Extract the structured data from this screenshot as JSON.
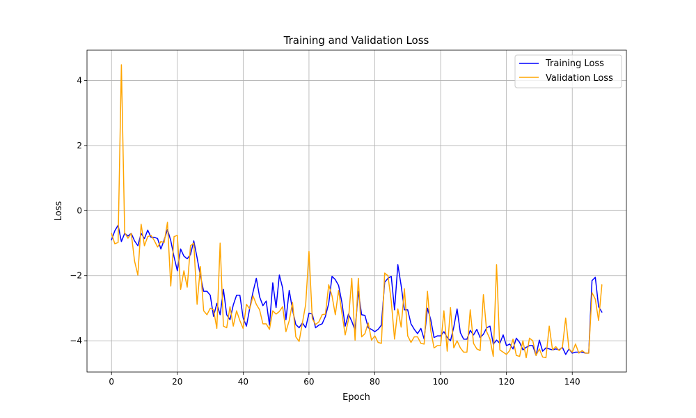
{
  "chart_data": {
    "type": "line",
    "title": "Training and Validation Loss",
    "xlabel": "Epoch",
    "ylabel": "Loss",
    "xlim": [
      -7.45,
      156.45
    ],
    "ylim": [
      -4.96,
      4.93
    ],
    "xticks": [
      0,
      20,
      40,
      60,
      80,
      100,
      120,
      140
    ],
    "yticks": [
      -4,
      -2,
      0,
      2,
      4
    ],
    "grid": true,
    "legend": "top-right",
    "series": [
      {
        "name": "Training Loss",
        "color": "#0000ff",
        "values": [
          -0.9,
          -0.62,
          -0.45,
          -0.95,
          -0.7,
          -0.78,
          -0.7,
          -0.93,
          -1.08,
          -0.7,
          -0.86,
          -0.6,
          -0.82,
          -0.82,
          -0.86,
          -1.18,
          -0.9,
          -0.58,
          -0.92,
          -1.42,
          -1.85,
          -1.18,
          -1.4,
          -1.48,
          -1.35,
          -0.93,
          -1.45,
          -2.0,
          -2.48,
          -2.48,
          -2.6,
          -3.25,
          -2.85,
          -3.2,
          -2.42,
          -3.2,
          -3.35,
          -2.9,
          -2.6,
          -2.6,
          -3.3,
          -3.55,
          -3.0,
          -2.5,
          -2.08,
          -2.65,
          -2.92,
          -2.78,
          -3.52,
          -2.22,
          -2.98,
          -1.98,
          -2.38,
          -3.35,
          -2.45,
          -3.05,
          -3.5,
          -3.6,
          -3.45,
          -3.6,
          -3.15,
          -3.18,
          -3.6,
          -3.52,
          -3.48,
          -3.25,
          -2.85,
          -2.02,
          -2.12,
          -2.3,
          -2.82,
          -3.55,
          -3.18,
          -3.4,
          -3.68,
          -2.48,
          -3.2,
          -3.22,
          -3.6,
          -3.65,
          -3.72,
          -3.65,
          -3.52,
          -2.2,
          -2.08,
          -2.02,
          -3.05,
          -1.66,
          -2.3,
          -3.05,
          -3.05,
          -3.48,
          -3.65,
          -3.78,
          -3.62,
          -3.95,
          -3.0,
          -3.35,
          -3.9,
          -3.85,
          -3.85,
          -3.72,
          -3.9,
          -4.0,
          -3.58,
          -3.02,
          -3.75,
          -3.95,
          -3.95,
          -3.68,
          -3.82,
          -3.65,
          -3.9,
          -3.8,
          -3.6,
          -3.55,
          -4.1,
          -3.98,
          -4.08,
          -3.82,
          -4.15,
          -4.1,
          -4.25,
          -3.92,
          -4.05,
          -4.28,
          -4.2,
          -4.15,
          -4.15,
          -4.45,
          -3.98,
          -4.32,
          -4.22,
          -4.25,
          -4.28,
          -4.25,
          -4.28,
          -4.2,
          -4.42,
          -4.25,
          -4.38,
          -4.35,
          -4.35,
          -4.35,
          -4.38,
          -4.38,
          -2.15,
          -2.05,
          -2.95,
          -3.12
        ],
        "line_width": 1.5
      },
      {
        "name": "Validation Loss",
        "color": "#ffa500",
        "values": [
          -0.7,
          -1.02,
          -0.98,
          4.48,
          -0.68,
          -0.85,
          -0.7,
          -1.55,
          -1.98,
          -0.42,
          -1.08,
          -0.8,
          -0.76,
          -0.92,
          -1.12,
          -0.95,
          -0.98,
          -0.36,
          -2.32,
          -0.8,
          -0.76,
          -2.42,
          -1.85,
          -2.35,
          -1.08,
          -1.0,
          -2.88,
          -1.72,
          -3.08,
          -3.2,
          -3.0,
          -3.05,
          -3.62,
          -1.0,
          -3.55,
          -3.6,
          -2.95,
          -3.55,
          -3.08,
          -3.38,
          -3.62,
          -2.88,
          -3.02,
          -2.62,
          -2.88,
          -3.05,
          -3.48,
          -3.48,
          -3.65,
          -3.08,
          -3.18,
          -3.1,
          -2.95,
          -3.72,
          -3.38,
          -2.82,
          -3.88,
          -4.02,
          -3.45,
          -2.88,
          -1.25,
          -3.32,
          -3.5,
          -3.42,
          -3.2,
          -3.18,
          -2.28,
          -2.62,
          -3.2,
          -2.45,
          -3.15,
          -3.82,
          -3.35,
          -2.08,
          -3.98,
          -2.08,
          -3.88,
          -3.78,
          -3.45,
          -3.98,
          -3.85,
          -4.05,
          -4.08,
          -1.92,
          -2.0,
          -2.78,
          -3.95,
          -3.02,
          -3.58,
          -2.4,
          -3.85,
          -4.05,
          -3.88,
          -3.88,
          -4.08,
          -4.1,
          -2.48,
          -3.68,
          -4.22,
          -4.15,
          -4.15,
          -3.08,
          -4.32,
          -2.98,
          -4.22,
          -4.0,
          -4.22,
          -4.35,
          -4.35,
          -3.05,
          -4.08,
          -4.25,
          -4.3,
          -2.58,
          -3.72,
          -3.95,
          -4.48,
          -1.66,
          -4.28,
          -4.35,
          -4.42,
          -4.3,
          -3.95,
          -4.45,
          -4.48,
          -4.0,
          -4.52,
          -3.92,
          -4.0,
          -4.45,
          -4.25,
          -4.5,
          -4.52,
          -3.55,
          -4.28,
          -4.18,
          -4.3,
          -4.2,
          -3.3,
          -4.25,
          -4.35,
          -4.1,
          -4.38,
          -4.3,
          -4.38,
          -4.38,
          -2.52,
          -2.72,
          -3.38,
          -2.28
        ],
        "line_width": 1.5
      }
    ]
  }
}
